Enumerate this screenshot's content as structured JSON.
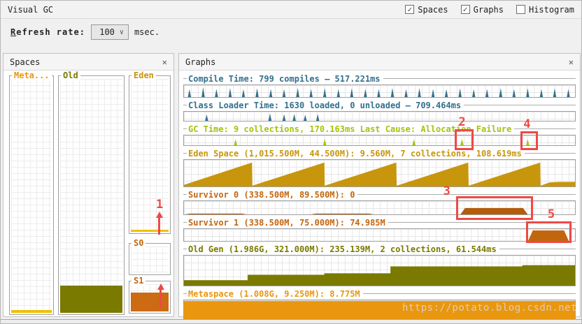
{
  "window": {
    "title": "Visual GC",
    "watermark": "https://potato.blog.csdn.net"
  },
  "toolbar": {
    "spaces_label": "Spaces",
    "spaces_checked": "✓",
    "graphs_label": "Graphs",
    "graphs_checked": "✓",
    "histogram_label": "Histogram",
    "histogram_checked": ""
  },
  "refresh": {
    "accel": "R",
    "label_rest": "efresh rate:",
    "value": "100",
    "unit": "msec.",
    "chevron": "∨"
  },
  "spaces_panel": {
    "title": "Spaces",
    "close_icon": "✕",
    "columns": [
      {
        "id": "meta",
        "label": "Meta...",
        "label_color": "#e9970f",
        "fill_color": "#f0c000",
        "fill_percent": 1.2
      },
      {
        "id": "old",
        "label": "Old",
        "label_color": "#7a7a00",
        "fill_color": "#7a7a00",
        "fill_percent": 11.5
      },
      {
        "id": "eden",
        "label": "Eden",
        "label_color": "#c8960c",
        "fill_color": "#f0c000",
        "fill_percent": 1.6
      }
    ],
    "s0": {
      "label": "S0",
      "label_color": "#c2660e",
      "fill_color": "#cd6a14",
      "fill_percent": 0
    },
    "s1": {
      "label": "S1",
      "label_color": "#c2660e",
      "fill_color": "#cd6a14",
      "fill_percent": 70
    }
  },
  "graphs_panel": {
    "title": "Graphs",
    "close_icon": "✕",
    "rows": [
      {
        "id": "compile",
        "label": "Compile Time: 799 compiles — 517.221ms",
        "color": "#33708c",
        "type": "spikes",
        "spikes": [
          [
            1.4,
            66
          ],
          [
            4.9,
            84
          ],
          [
            8.3,
            68
          ],
          [
            11.8,
            76
          ],
          [
            15.2,
            66
          ],
          [
            18.7,
            74
          ],
          [
            22.2,
            68
          ],
          [
            25.6,
            66
          ],
          [
            29.1,
            76
          ],
          [
            32.5,
            68
          ],
          [
            36,
            74
          ],
          [
            39.5,
            66
          ],
          [
            42.9,
            74
          ],
          [
            46.4,
            68
          ],
          [
            49.8,
            66
          ],
          [
            53.3,
            76
          ],
          [
            56.8,
            66
          ],
          [
            60.2,
            74
          ],
          [
            63.7,
            68
          ],
          [
            67.1,
            66
          ],
          [
            70.6,
            74
          ],
          [
            74.1,
            66
          ],
          [
            77.5,
            68
          ],
          [
            81,
            76
          ],
          [
            84.4,
            66
          ],
          [
            87.9,
            74
          ],
          [
            91.4,
            66
          ],
          [
            94.8,
            74
          ],
          [
            98.3,
            66
          ]
        ]
      },
      {
        "id": "classloader",
        "label": "Class Loader Time: 1630 loaded, 0 unloaded — 709.464ms",
        "color": "#33708c",
        "type": "spikes",
        "spikes": [
          [
            5.8,
            68
          ],
          [
            22,
            82
          ],
          [
            25.6,
            72
          ],
          [
            28.2,
            76
          ],
          [
            31,
            66
          ],
          [
            34.2,
            74
          ]
        ]
      },
      {
        "id": "gc",
        "label": "GC Time: 9 collections, 170.163ms Last Cause: Allocation Failure",
        "color": "#a2c40c",
        "type": "spikes",
        "spikes": [
          [
            13.2,
            62
          ],
          [
            36,
            64
          ],
          [
            58.8,
            62
          ],
          [
            71.1,
            64
          ],
          [
            87.9,
            60
          ]
        ]
      },
      {
        "id": "eden",
        "label": "Eden Space (1,015.500M, 44.500M): 9.560M, 7 collections, 108.619ms",
        "color": "#c8960c",
        "type": "area",
        "points": [
          [
            0,
            6
          ],
          [
            17.4,
            90
          ],
          [
            17.5,
            3
          ],
          [
            35.9,
            90
          ],
          [
            36,
            3
          ],
          [
            54.3,
            90
          ],
          [
            54.4,
            3
          ],
          [
            72.7,
            90
          ],
          [
            72.8,
            3
          ],
          [
            91.1,
            90
          ],
          [
            91.2,
            3
          ],
          [
            93.5,
            15
          ],
          [
            96,
            17
          ],
          [
            100,
            17
          ]
        ]
      },
      {
        "id": "s0",
        "label": "Survivor 0 (338.500M, 89.500M): 0",
        "color": "#c2660e",
        "fill": "#b25c0c",
        "type": "blocks",
        "blocks": [
          [
            0.3,
            16,
            6
          ],
          [
            32.5,
            48.5,
            6
          ],
          [
            70.7,
            87.9,
            48
          ]
        ]
      },
      {
        "id": "s1",
        "label": "Survivor 1 (338.500M, 75.000M): 74.985M",
        "color": "#c2660e",
        "fill": "#c2660e",
        "type": "blocks",
        "blocks": [
          [
            88,
            98.4,
            88
          ]
        ]
      },
      {
        "id": "old",
        "label": "Old Gen (1.986G, 321.000M): 235.139M, 2 collections, 61.544ms",
        "color": "#7a7a00",
        "type": "area",
        "points": [
          [
            0,
            18
          ],
          [
            16.3,
            18
          ],
          [
            16.3,
            36
          ],
          [
            35.9,
            36
          ],
          [
            35.9,
            41
          ],
          [
            52.8,
            41
          ],
          [
            52.8,
            64
          ],
          [
            86.5,
            64
          ],
          [
            86.5,
            68
          ],
          [
            100,
            68
          ]
        ]
      },
      {
        "id": "meta",
        "label": "Metaspace (1.008G, 9.250M): 8.775M",
        "color": "#e9970f",
        "type": "area",
        "points": [
          [
            0,
            96
          ],
          [
            100,
            96
          ]
        ]
      }
    ]
  },
  "annotations": {
    "color": "#ee4946",
    "n1": "1",
    "n2": "2",
    "n3": "3",
    "n4": "4",
    "n5": "5"
  }
}
